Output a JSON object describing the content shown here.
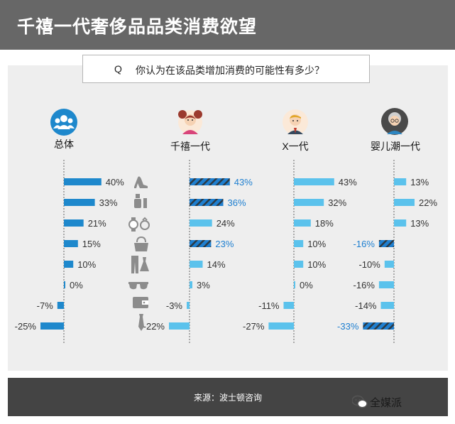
{
  "title": "千禧一代奢侈品品类消费欲望",
  "question": {
    "marker": "Q",
    "text": "你认为在该品类增加消费的可能性有多少？"
  },
  "groups": [
    {
      "name": "总体",
      "avatar": "group-icon"
    },
    {
      "name": "千禧一代",
      "avatar": "millennial-avatar-icon"
    },
    {
      "name": "X一代",
      "avatar": "genx-avatar-icon"
    },
    {
      "name": "婴儿潮一代",
      "avatar": "boomer-avatar-icon"
    }
  ],
  "category_icons": [
    "high-heel-shoe-icon",
    "cosmetics-icon",
    "watch-ring-icon",
    "handbag-icon",
    "clothing-icon",
    "sunglasses-icon",
    "wallet-icon",
    "tie-icon"
  ],
  "colors": {
    "overall": "#1e88cc",
    "generation": "#5bc2ec",
    "highlight": "#1e7fd0",
    "highlight_stripe": "#2b3a45"
  },
  "chart_data": [
    {
      "type": "bar",
      "series": [
        {
          "name": "总体",
          "values": [
            40,
            33,
            21,
            15,
            10,
            0,
            -7,
            -25
          ],
          "labels": [
            "40%",
            "33%",
            "21%",
            "15%",
            "10%",
            "0%",
            "-7%",
            "-25%"
          ]
        }
      ]
    },
    {
      "type": "bar",
      "series": [
        {
          "name": "千禧一代",
          "values": [
            43,
            36,
            24,
            23,
            14,
            3,
            -3,
            -22
          ],
          "labels": [
            "43%",
            "36%",
            "24%",
            "23%",
            "14%",
            "3%",
            "-3%",
            "-22%"
          ],
          "highlighted": [
            true,
            true,
            false,
            true,
            false,
            false,
            false,
            false
          ]
        }
      ]
    },
    {
      "type": "bar",
      "series": [
        {
          "name": "X一代",
          "values": [
            43,
            32,
            18,
            10,
            10,
            0,
            -11,
            -27
          ],
          "labels": [
            "43%",
            "32%",
            "18%",
            "10%",
            "10%",
            "0%",
            "-11%",
            "-27%"
          ]
        }
      ]
    },
    {
      "type": "bar",
      "series": [
        {
          "name": "婴儿潮一代",
          "values": [
            13,
            22,
            13,
            -16,
            -10,
            -16,
            -14,
            -33
          ],
          "labels": [
            "13%",
            "22%",
            "13%",
            "-16%",
            "-10%",
            "-16%",
            "-14%",
            "-33%"
          ],
          "highlighted": [
            false,
            false,
            false,
            true,
            false,
            false,
            false,
            true
          ]
        }
      ]
    }
  ],
  "footer": {
    "source": "来源：波士顿咨询",
    "brand": "全媒派"
  }
}
